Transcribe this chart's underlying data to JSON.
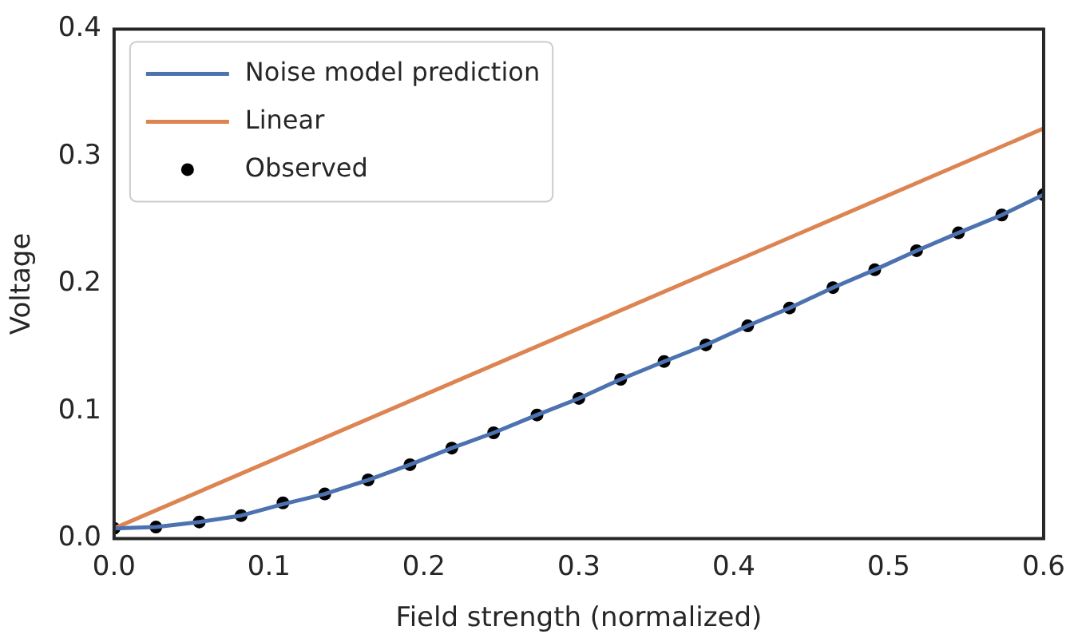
{
  "chart_data": {
    "type": "line",
    "xlabel": "Field strength (normalized)",
    "ylabel": "Voltage",
    "xlim": [
      0,
      0.6
    ],
    "ylim": [
      0,
      0.4
    ],
    "xticks": [
      {
        "value": 0,
        "label": "0.0"
      },
      0.1,
      0.2,
      0.3,
      0.4,
      0.5,
      0.6
    ],
    "yticks": [
      {
        "value": 0,
        "label": "0.0"
      },
      0.1,
      0.2,
      0.3,
      0.4
    ],
    "grid": false,
    "legend": "top left",
    "series": [
      {
        "name": "Noise model prediction",
        "color": "#4c72b0",
        "marker": "none",
        "x": [
          0,
          0.027,
          0.055,
          0.082,
          0.109,
          0.136,
          0.164,
          0.191,
          0.218,
          0.245,
          0.273,
          0.3,
          0.327,
          0.355,
          0.382,
          0.409,
          0.436,
          0.464,
          0.491,
          0.518,
          0.545,
          0.573,
          0.6
        ],
        "values": [
          0.008,
          0.009,
          0.013,
          0.018,
          0.027,
          0.035,
          0.046,
          0.058,
          0.071,
          0.083,
          0.097,
          0.11,
          0.125,
          0.139,
          0.152,
          0.167,
          0.181,
          0.197,
          0.211,
          0.226,
          0.24,
          0.254,
          0.27
        ]
      },
      {
        "name": "Linear",
        "color": "#dd8452",
        "marker": "none",
        "x": [
          0,
          0.6
        ],
        "values": [
          0.008,
          0.322
        ]
      },
      {
        "name": "Observed",
        "type": "scatter",
        "color": "#000000",
        "marker": "circle",
        "x": [
          0,
          0.027,
          0.055,
          0.082,
          0.109,
          0.136,
          0.164,
          0.191,
          0.218,
          0.245,
          0.273,
          0.3,
          0.327,
          0.355,
          0.382,
          0.409,
          0.436,
          0.464,
          0.491,
          0.518,
          0.545,
          0.573,
          0.6
        ],
        "values": [
          0.008,
          0.009,
          0.013,
          0.018,
          0.028,
          0.035,
          0.046,
          0.058,
          0.071,
          0.083,
          0.097,
          0.11,
          0.125,
          0.139,
          0.152,
          0.167,
          0.181,
          0.197,
          0.211,
          0.226,
          0.24,
          0.254,
          0.27
        ]
      }
    ]
  }
}
